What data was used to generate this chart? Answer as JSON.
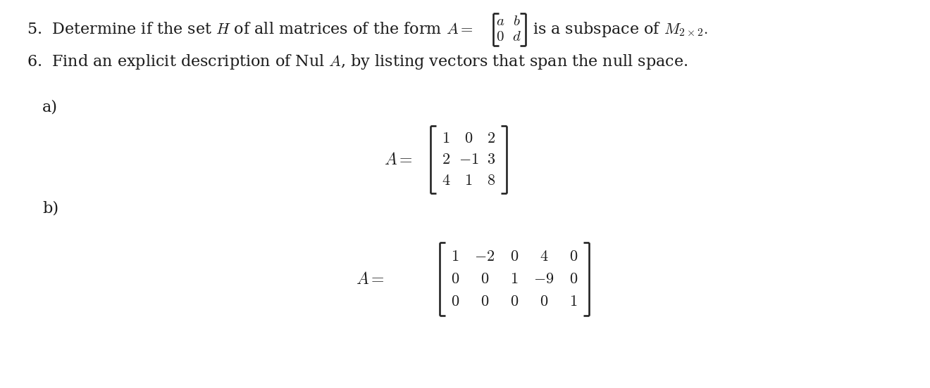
{
  "bg_color": "#ffffff",
  "text_color": "#1a1a1a",
  "figsize": [
    13.2,
    5.52
  ],
  "dpi": 100,
  "font_size_main": 16,
  "font_size_matrix": 16,
  "font_size_small_mat": 15,
  "line1_prefix": "5.  Determine if the set $H$ of all matrices of the form $A=$",
  "line1_suffix": "is a subspace of $M_{2\\times2}.$",
  "line2": "6.  Find an explicit description of Nul $A$, by listing vectors that span the null space.",
  "label_a": "a)",
  "label_b": "b)",
  "mat2_cells": [
    [
      "$a$",
      "$b$"
    ],
    [
      "$0$",
      "$d$"
    ]
  ],
  "mat_a_rows": [
    [
      "1",
      "0",
      "2"
    ],
    [
      "2",
      "-1",
      "3"
    ],
    [
      "4",
      "1",
      "8"
    ]
  ],
  "mat_b_rows": [
    [
      "1",
      "-2",
      "0",
      "4",
      "0"
    ],
    [
      "0",
      "0",
      "1",
      "-9",
      "0"
    ],
    [
      "0",
      "0",
      "0",
      "0",
      "1"
    ]
  ]
}
